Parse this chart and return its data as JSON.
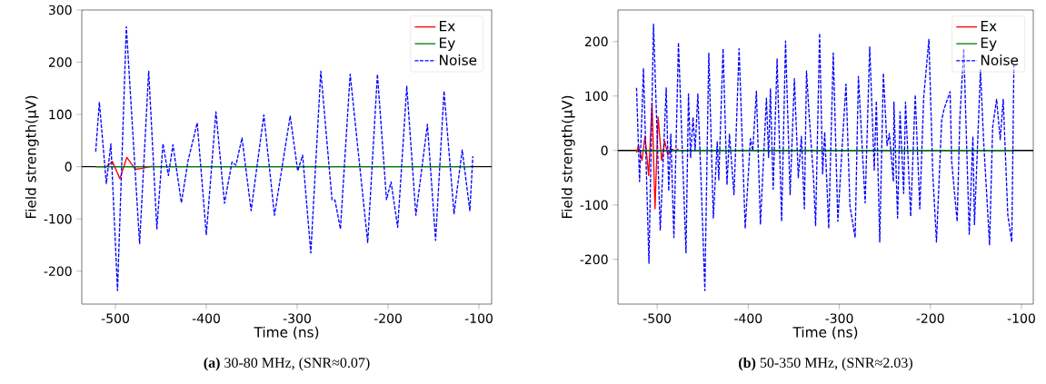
{
  "chart_data": [
    {
      "type": "line",
      "title": "**(a)** 30-80 MHz, (SNR≈0.07)",
      "xlabel": "Time (ns)",
      "ylabel": "Field strength(μV)",
      "xlim": [
        -537,
        -86
      ],
      "ylim": [
        -263,
        300
      ],
      "xticks": [
        -500,
        -400,
        -300,
        -200,
        -100
      ],
      "yticks": [
        -200,
        -100,
        0,
        100,
        200,
        300
      ],
      "legend": "top right",
      "ref_lines": [
        {
          "axis": "y",
          "value": 0,
          "color": "#000000"
        }
      ],
      "series": [
        {
          "name": "Ex",
          "color": "#ff0000",
          "line_style": "solid",
          "x": [
            -522,
            -510,
            -503.4,
            -495,
            -487.4,
            -478,
            -470,
            -460
          ],
          "values": [
            0,
            0,
            10,
            -23,
            18,
            -5,
            -3,
            1
          ]
        },
        {
          "name": "Ey",
          "color": "#008000",
          "line_style": "solid",
          "x": [
            -522,
            -110
          ],
          "values": [
            0,
            0
          ]
        },
        {
          "name": "Noise",
          "color": "#0000ff",
          "line_style": "dashed",
          "x": [
            -521.7,
            -517.7,
            -510,
            -505,
            -497.7,
            -488,
            -473.4,
            -463.4,
            -454.4,
            -447.7,
            -441.7,
            -436.7,
            -427.4,
            -420,
            -410,
            -400,
            -389.4,
            -380,
            -371.7,
            -367.4,
            -360.7,
            -350.7,
            -336.7,
            -325,
            -307.7,
            -299.4,
            -294,
            -285,
            -274,
            -261.7,
            -258.4,
            -252.4,
            -241.7,
            -222.4,
            -211.7,
            -201.7,
            -196.7,
            -189.4,
            -179.4,
            -169.4,
            -156.7,
            -147.7,
            -138.4,
            -127.4,
            -118.4,
            -110,
            -106.7
          ],
          "values": [
            29,
            123,
            -32,
            44,
            -237,
            268,
            -147,
            183,
            -119,
            44,
            -17,
            42,
            -69,
            12,
            84,
            -130,
            105,
            -70,
            9,
            3,
            55,
            -84,
            99,
            -93,
            97,
            -8,
            22,
            -165,
            183,
            -63,
            -64,
            -119,
            177,
            -145,
            177,
            -63,
            -29,
            -116,
            154,
            -93,
            81,
            -141,
            145,
            -90,
            32,
            -84,
            20
          ]
        }
      ]
    },
    {
      "type": "line",
      "title": "**(b)** 50-350 MHz, (SNR≈2.03)",
      "xlabel": "Time (ns)",
      "ylabel": "Field strength(μV)",
      "xlim": [
        -543,
        -87
      ],
      "ylim": [
        -282,
        258
      ],
      "xticks": [
        -500,
        -400,
        -300,
        -200,
        -100
      ],
      "yticks": [
        -200,
        -100,
        0,
        100,
        200
      ],
      "legend": "top right",
      "ref_lines": [
        {
          "axis": "y",
          "value": 0,
          "color": "#000000"
        }
      ],
      "series": [
        {
          "name": "Ex",
          "color": "#ff0000",
          "line_style": "solid",
          "x": [
            -522.6,
            -520.6,
            -516.6,
            -513.3,
            -509.3,
            -505.6,
            -502.3,
            -499,
            -495,
            -491.6,
            -488.3,
            -485,
            -480,
            -476.6
          ],
          "values": [
            -4,
            9,
            -18,
            26,
            -46,
            87,
            -107,
            62,
            -18,
            17,
            -8,
            3,
            0,
            3
          ]
        },
        {
          "name": "Ey",
          "color": "#008000",
          "line_style": "solid",
          "x": [
            -522.6,
            -110
          ],
          "values": [
            0,
            0
          ]
        },
        {
          "name": "Noise",
          "color": "#0000ff",
          "line_style": "dashed",
          "x": [
            -522.6,
            -519.3,
            -515,
            -509,
            -504,
            -496.6,
            -490,
            -487.3,
            -485,
            -481.6,
            -476.6,
            -468.3,
            -465.6,
            -463.3,
            -460.6,
            -458.3,
            -455.3,
            -451.6,
            -447.6,
            -443.3,
            -438.3,
            -434,
            -432.3,
            -427.6,
            -423.3,
            -420.6,
            -415.6,
            -410,
            -403.3,
            -397.6,
            -395,
            -391,
            -386.6,
            -380,
            -377.6,
            -375.6,
            -372.6,
            -368.3,
            -363.3,
            -359,
            -354,
            -349.3,
            -345,
            -341.6,
            -338.3,
            -336,
            -333,
            -328.3,
            -326,
            -321.6,
            -318.3,
            -316,
            -311.6,
            -306.6,
            -301.6,
            -296.6,
            -292.6,
            -288.3,
            -282.6,
            -279,
            -271.6,
            -266.6,
            -261.6,
            -259.3,
            -255.6,
            -251.6,
            -247.6,
            -245,
            -240.6,
            -240,
            -236,
            -233.3,
            -229.3,
            -227.3,
            -221.6,
            -216.6,
            -211.6,
            -207.3,
            -201.6,
            -197.3,
            -193.3,
            -187.6,
            -185,
            -178.3,
            -176.6,
            -170.6,
            -167.6,
            -163.3,
            -157.3,
            -153.3,
            -151.6,
            -145,
            -141.6,
            -135,
            -131.6,
            -127.3,
            -123.3,
            -120,
            -115,
            -110.6,
            -108.3
          ],
          "values": [
            115,
            -57,
            151,
            -207,
            232,
            -146,
            115,
            -74,
            30,
            -160,
            198,
            -188,
            104,
            -13,
            61,
            0,
            104,
            -63,
            -257,
            179,
            -124,
            16,
            -54,
            187,
            -63,
            30,
            -81,
            187,
            -143,
            22,
            0,
            109,
            -135,
            96,
            -13,
            113,
            -71,
            168,
            -130,
            201,
            -81,
            132,
            -50,
            26,
            -107,
            146,
            62,
            -50,
            -138,
            215,
            -43,
            34,
            -143,
            179,
            -130,
            15,
            122,
            -102,
            -160,
            136,
            -96,
            190,
            -36,
            91,
            -168,
            142,
            9,
            31,
            -57,
            89,
            -124,
            71,
            -79,
            89,
            -121,
            102,
            -107,
            98,
            204,
            -44,
            -168,
            55,
            76,
            108,
            -20,
            -130,
            60,
            187,
            -154,
            26,
            -136,
            148,
            20,
            -173,
            43,
            94,
            20,
            94,
            -118,
            -168,
            157
          ]
        }
      ]
    }
  ]
}
